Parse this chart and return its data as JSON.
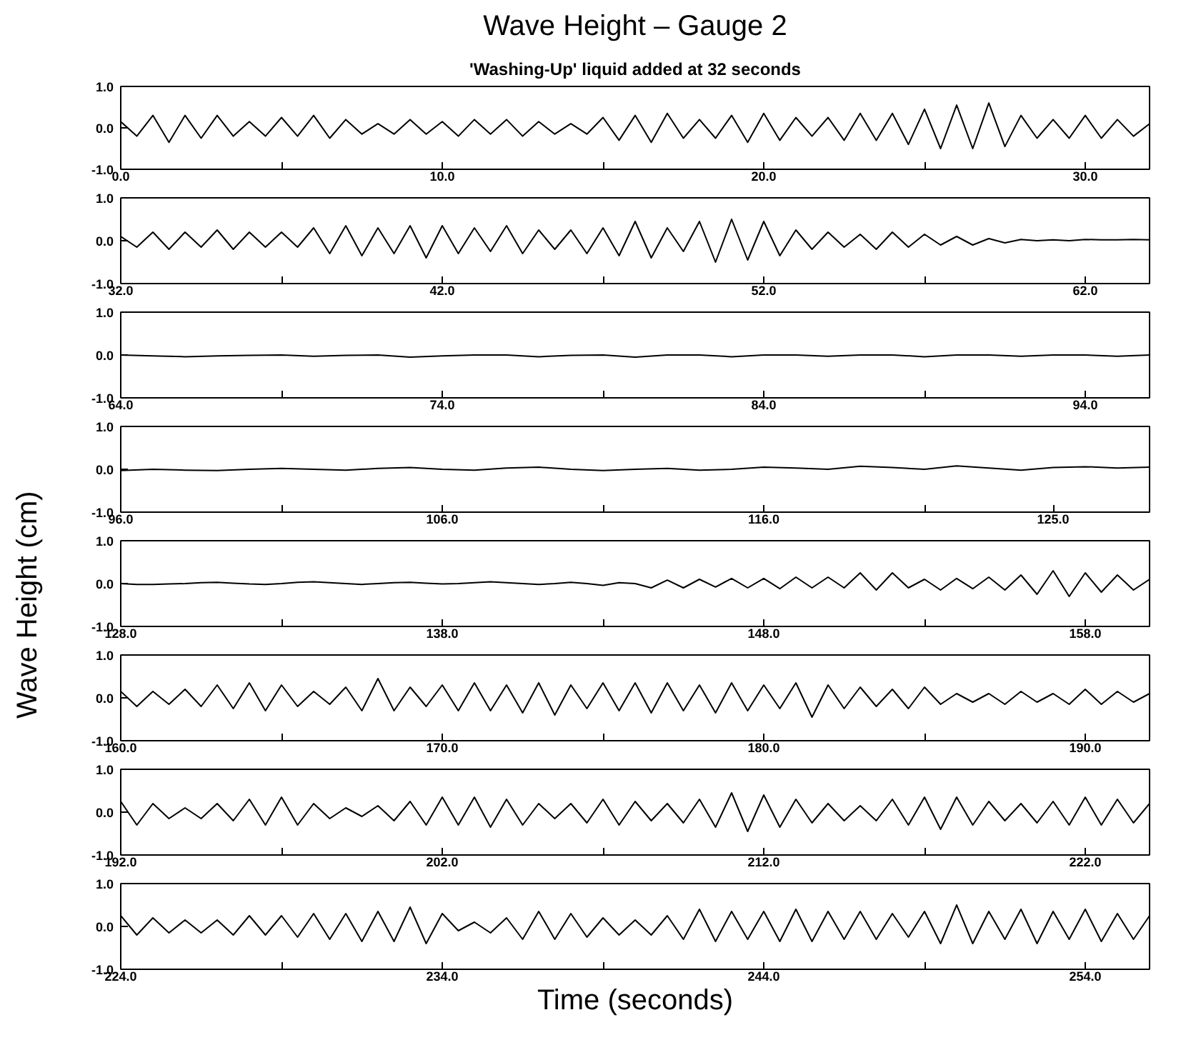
{
  "chart_data": [
    {
      "type": "line",
      "title": "Wave Height – Gauge 2",
      "subtitle": "'Washing-Up' liquid added at 32 seconds",
      "xlim": [
        0,
        32
      ],
      "xticks": [
        {
          "value": 0,
          "label": "0.0"
        },
        {
          "value": 5,
          "label": null
        },
        {
          "value": 10,
          "label": "10.0"
        },
        {
          "value": 15,
          "label": null
        },
        {
          "value": 20,
          "label": "20.0"
        },
        {
          "value": 25,
          "label": null
        },
        {
          "value": 30,
          "label": "30.0"
        }
      ],
      "ylim": [
        -1,
        1
      ],
      "yticks": [
        {
          "value": -1,
          "label": "-1.0"
        },
        {
          "value": 0,
          "label": "0.0"
        },
        {
          "value": 1,
          "label": "1.0"
        }
      ],
      "series": [
        {
          "color": "#000000",
          "x": [
            0,
            0.5,
            1,
            1.5,
            2,
            2.5,
            3,
            3.5,
            4,
            4.5,
            5,
            5.5,
            6,
            6.5,
            7,
            7.5,
            8,
            8.5,
            9,
            9.5,
            10,
            10.5,
            11,
            11.5,
            12,
            12.5,
            13,
            13.5,
            14,
            14.5,
            15,
            15.5,
            16,
            16.5,
            17,
            17.5,
            18,
            18.5,
            19,
            19.5,
            20,
            20.5,
            21,
            21.5,
            22,
            22.5,
            23,
            23.5,
            24,
            24.5,
            25,
            25.5,
            26,
            26.5,
            27,
            27.5,
            28,
            28.5,
            29,
            29.5,
            30,
            30.5,
            31,
            31.5,
            32
          ],
          "values": [
            0.15,
            -0.2,
            0.3,
            -0.35,
            0.3,
            -0.25,
            0.3,
            -0.2,
            0.15,
            -0.2,
            0.25,
            -0.2,
            0.3,
            -0.25,
            0.2,
            -0.15,
            0.1,
            -0.15,
            0.2,
            -0.15,
            0.15,
            -0.2,
            0.2,
            -0.15,
            0.2,
            -0.2,
            0.15,
            -0.15,
            0.1,
            -0.15,
            0.25,
            -0.3,
            0.3,
            -0.35,
            0.35,
            -0.25,
            0.2,
            -0.25,
            0.3,
            -0.35,
            0.35,
            -0.3,
            0.25,
            -0.2,
            0.25,
            -0.3,
            0.35,
            -0.3,
            0.35,
            -0.4,
            0.45,
            -0.5,
            0.55,
            -0.5,
            0.6,
            -0.45,
            0.3,
            -0.25,
            0.2,
            -0.25,
            0.3,
            -0.25,
            0.2,
            -0.2,
            0.1
          ]
        }
      ]
    },
    {
      "type": "line",
      "xlim": [
        32,
        64
      ],
      "xticks": [
        {
          "value": 32,
          "label": "32.0"
        },
        {
          "value": 37,
          "label": null
        },
        {
          "value": 42,
          "label": "42.0"
        },
        {
          "value": 47,
          "label": null
        },
        {
          "value": 52,
          "label": "52.0"
        },
        {
          "value": 57,
          "label": null
        },
        {
          "value": 62,
          "label": "62.0"
        }
      ],
      "ylim": [
        -1,
        1
      ],
      "yticks": [
        {
          "value": -1,
          "label": "-1.0"
        },
        {
          "value": 0,
          "label": "0.0"
        },
        {
          "value": 1,
          "label": "1.0"
        }
      ],
      "series": [
        {
          "color": "#000000",
          "x": [
            32,
            32.5,
            33,
            33.5,
            34,
            34.5,
            35,
            35.5,
            36,
            36.5,
            37,
            37.5,
            38,
            38.5,
            39,
            39.5,
            40,
            40.5,
            41,
            41.5,
            42,
            42.5,
            43,
            43.5,
            44,
            44.5,
            45,
            45.5,
            46,
            46.5,
            47,
            47.5,
            48,
            48.5,
            49,
            49.5,
            50,
            50.5,
            51,
            51.5,
            52,
            52.5,
            53,
            53.5,
            54,
            54.5,
            55,
            55.5,
            56,
            56.5,
            57,
            57.5,
            58,
            58.5,
            59,
            59.5,
            60,
            60.5,
            61,
            61.5,
            62,
            62.5,
            63,
            63.5,
            64
          ],
          "values": [
            0.1,
            -0.15,
            0.2,
            -0.2,
            0.2,
            -0.15,
            0.25,
            -0.2,
            0.2,
            -0.15,
            0.2,
            -0.15,
            0.3,
            -0.3,
            0.35,
            -0.35,
            0.3,
            -0.3,
            0.35,
            -0.4,
            0.35,
            -0.3,
            0.3,
            -0.25,
            0.35,
            -0.3,
            0.25,
            -0.2,
            0.25,
            -0.3,
            0.3,
            -0.35,
            0.45,
            -0.4,
            0.3,
            -0.25,
            0.45,
            -0.5,
            0.5,
            -0.45,
            0.45,
            -0.35,
            0.25,
            -0.2,
            0.2,
            -0.15,
            0.15,
            -0.2,
            0.2,
            -0.15,
            0.15,
            -0.1,
            0.1,
            -0.1,
            0.05,
            -0.05,
            0.03,
            0.0,
            0.02,
            0.0,
            0.03,
            0.02,
            0.02,
            0.03,
            0.02
          ]
        }
      ]
    },
    {
      "type": "line",
      "xlim": [
        64,
        96
      ],
      "xticks": [
        {
          "value": 64,
          "label": "64.0"
        },
        {
          "value": 69,
          "label": null
        },
        {
          "value": 74,
          "label": "74.0"
        },
        {
          "value": 79,
          "label": null
        },
        {
          "value": 84,
          "label": "84.0"
        },
        {
          "value": 89,
          "label": null
        },
        {
          "value": 94,
          "label": "94.0"
        }
      ],
      "ylim": [
        -1,
        1
      ],
      "yticks": [
        {
          "value": -1,
          "label": "-1.0"
        },
        {
          "value": 0,
          "label": "0.0"
        },
        {
          "value": 1,
          "label": "1.0"
        }
      ],
      "series": [
        {
          "color": "#000000",
          "x": [
            64,
            65,
            66,
            67,
            68,
            69,
            70,
            71,
            72,
            73,
            74,
            75,
            76,
            77,
            78,
            79,
            80,
            81,
            82,
            83,
            84,
            85,
            86,
            87,
            88,
            89,
            90,
            91,
            92,
            93,
            94,
            95,
            96
          ],
          "values": [
            0.0,
            -0.02,
            -0.04,
            -0.02,
            -0.01,
            0.0,
            -0.03,
            -0.01,
            0.0,
            -0.05,
            -0.02,
            0.0,
            0.0,
            -0.04,
            -0.01,
            0.0,
            -0.05,
            0.0,
            0.0,
            -0.04,
            0.0,
            0.0,
            -0.03,
            0.0,
            0.0,
            -0.04,
            0.0,
            0.0,
            -0.03,
            0.0,
            0.0,
            -0.03,
            0.0
          ]
        }
      ]
    },
    {
      "type": "line",
      "xlim": [
        96,
        128
      ],
      "xticks": [
        {
          "value": 96,
          "label": "96.0"
        },
        {
          "value": 101,
          "label": null
        },
        {
          "value": 106,
          "label": "106.0"
        },
        {
          "value": 111,
          "label": null
        },
        {
          "value": 116,
          "label": "116.0"
        },
        {
          "value": 121,
          "label": null
        },
        {
          "value": 125,
          "label": "125.0"
        }
      ],
      "ylim": [
        -1,
        1
      ],
      "yticks": [
        {
          "value": -1,
          "label": "-1.0"
        },
        {
          "value": 0,
          "label": "0.0"
        },
        {
          "value": 1,
          "label": "1.0"
        }
      ],
      "series": [
        {
          "color": "#000000",
          "x": [
            96,
            97,
            98,
            99,
            100,
            101,
            102,
            103,
            104,
            105,
            106,
            107,
            108,
            109,
            110,
            111,
            112,
            113,
            114,
            115,
            116,
            117,
            118,
            119,
            120,
            121,
            122,
            123,
            124,
            125,
            126,
            127,
            128
          ],
          "values": [
            -0.03,
            0.0,
            -0.02,
            -0.03,
            0.0,
            0.02,
            0.0,
            -0.02,
            0.02,
            0.04,
            0.0,
            -0.02,
            0.03,
            0.05,
            0.0,
            -0.03,
            0.0,
            0.02,
            -0.02,
            0.0,
            0.05,
            0.03,
            0.0,
            0.07,
            0.04,
            0.0,
            0.08,
            0.03,
            -0.02,
            0.04,
            0.06,
            0.03,
            0.05
          ]
        }
      ]
    },
    {
      "type": "line",
      "ylabel": "Wave Height (cm)",
      "xlim": [
        128,
        160
      ],
      "xticks": [
        {
          "value": 128,
          "label": "128.0"
        },
        {
          "value": 133,
          "label": null
        },
        {
          "value": 138,
          "label": "138.0"
        },
        {
          "value": 143,
          "label": null
        },
        {
          "value": 148,
          "label": "148.0"
        },
        {
          "value": 153,
          "label": null
        },
        {
          "value": 158,
          "label": "158.0"
        }
      ],
      "ylim": [
        -1,
        1
      ],
      "yticks": [
        {
          "value": -1,
          "label": "-1.0"
        },
        {
          "value": 0,
          "label": "0.0"
        },
        {
          "value": 1,
          "label": "1.0"
        }
      ],
      "series": [
        {
          "color": "#000000",
          "x": [
            128,
            128.5,
            129,
            129.5,
            130,
            130.5,
            131,
            131.5,
            132,
            132.5,
            133,
            133.5,
            134,
            134.5,
            135,
            135.5,
            136,
            136.5,
            137,
            137.5,
            138,
            138.5,
            139,
            139.5,
            140,
            140.5,
            141,
            141.5,
            142,
            142.5,
            143,
            143.5,
            144,
            144.5,
            145,
            145.5,
            146,
            146.5,
            147,
            147.5,
            148,
            148.5,
            149,
            149.5,
            150,
            150.5,
            151,
            151.5,
            152,
            152.5,
            153,
            153.5,
            154,
            154.5,
            155,
            155.5,
            156,
            156.5,
            157,
            157.5,
            158,
            158.5,
            159,
            159.5,
            160
          ],
          "values": [
            0.0,
            -0.02,
            -0.02,
            -0.01,
            0.0,
            0.02,
            0.03,
            0.01,
            -0.01,
            -0.02,
            0.0,
            0.03,
            0.04,
            0.02,
            0.0,
            -0.02,
            0.0,
            0.02,
            0.03,
            0.01,
            -0.01,
            0.0,
            0.02,
            0.04,
            0.02,
            0.0,
            -0.02,
            0.0,
            0.03,
            0.0,
            -0.04,
            0.02,
            0.0,
            -0.1,
            0.08,
            -0.1,
            0.1,
            -0.08,
            0.12,
            -0.1,
            0.12,
            -0.12,
            0.15,
            -0.1,
            0.15,
            -0.1,
            0.25,
            -0.15,
            0.25,
            -0.1,
            0.1,
            -0.15,
            0.12,
            -0.12,
            0.15,
            -0.15,
            0.2,
            -0.25,
            0.3,
            -0.3,
            0.25,
            -0.2,
            0.2,
            -0.15,
            0.1
          ]
        }
      ]
    },
    {
      "type": "line",
      "xlim": [
        160,
        192
      ],
      "xticks": [
        {
          "value": 160,
          "label": "160.0"
        },
        {
          "value": 165,
          "label": null
        },
        {
          "value": 170,
          "label": "170.0"
        },
        {
          "value": 175,
          "label": null
        },
        {
          "value": 180,
          "label": "180.0"
        },
        {
          "value": 185,
          "label": null
        },
        {
          "value": 190,
          "label": "190.0"
        }
      ],
      "ylim": [
        -1,
        1
      ],
      "yticks": [
        {
          "value": -1,
          "label": "-1.0"
        },
        {
          "value": 0,
          "label": "0.0"
        },
        {
          "value": 1,
          "label": "1.0"
        }
      ],
      "series": [
        {
          "color": "#000000",
          "x": [
            160,
            160.5,
            161,
            161.5,
            162,
            162.5,
            163,
            163.5,
            164,
            164.5,
            165,
            165.5,
            166,
            166.5,
            167,
            167.5,
            168,
            168.5,
            169,
            169.5,
            170,
            170.5,
            171,
            171.5,
            172,
            172.5,
            173,
            173.5,
            174,
            174.5,
            175,
            175.5,
            176,
            176.5,
            177,
            177.5,
            178,
            178.5,
            179,
            179.5,
            180,
            180.5,
            181,
            181.5,
            182,
            182.5,
            183,
            183.5,
            184,
            184.5,
            185,
            185.5,
            186,
            186.5,
            187,
            187.5,
            188,
            188.5,
            189,
            189.5,
            190,
            190.5,
            191,
            191.5,
            192
          ],
          "values": [
            0.15,
            -0.2,
            0.15,
            -0.15,
            0.2,
            -0.2,
            0.3,
            -0.25,
            0.35,
            -0.3,
            0.3,
            -0.2,
            0.15,
            -0.15,
            0.25,
            -0.3,
            0.45,
            -0.3,
            0.25,
            -0.2,
            0.3,
            -0.3,
            0.35,
            -0.3,
            0.3,
            -0.35,
            0.35,
            -0.4,
            0.3,
            -0.25,
            0.35,
            -0.3,
            0.35,
            -0.35,
            0.35,
            -0.3,
            0.3,
            -0.35,
            0.35,
            -0.3,
            0.3,
            -0.25,
            0.35,
            -0.45,
            0.3,
            -0.25,
            0.25,
            -0.2,
            0.2,
            -0.25,
            0.25,
            -0.15,
            0.1,
            -0.1,
            0.1,
            -0.15,
            0.15,
            -0.1,
            0.1,
            -0.15,
            0.2,
            -0.15,
            0.15,
            -0.1,
            0.1
          ]
        }
      ]
    },
    {
      "type": "line",
      "xlim": [
        192,
        224
      ],
      "xticks": [
        {
          "value": 192,
          "label": "192.0"
        },
        {
          "value": 197,
          "label": null
        },
        {
          "value": 202,
          "label": "202.0"
        },
        {
          "value": 207,
          "label": null
        },
        {
          "value": 212,
          "label": "212.0"
        },
        {
          "value": 217,
          "label": null
        },
        {
          "value": 222,
          "label": "222.0"
        }
      ],
      "ylim": [
        -1,
        1
      ],
      "yticks": [
        {
          "value": -1,
          "label": "-1.0"
        },
        {
          "value": 0,
          "label": "0.0"
        },
        {
          "value": 1,
          "label": "1.0"
        }
      ],
      "series": [
        {
          "color": "#000000",
          "x": [
            192,
            192.5,
            193,
            193.5,
            194,
            194.5,
            195,
            195.5,
            196,
            196.5,
            197,
            197.5,
            198,
            198.5,
            199,
            199.5,
            200,
            200.5,
            201,
            201.5,
            202,
            202.5,
            203,
            203.5,
            204,
            204.5,
            205,
            205.5,
            206,
            206.5,
            207,
            207.5,
            208,
            208.5,
            209,
            209.5,
            210,
            210.5,
            211,
            211.5,
            212,
            212.5,
            213,
            213.5,
            214,
            214.5,
            215,
            215.5,
            216,
            216.5,
            217,
            217.5,
            218,
            218.5,
            219,
            219.5,
            220,
            220.5,
            221,
            221.5,
            222,
            222.5,
            223,
            223.5,
            224
          ],
          "values": [
            0.25,
            -0.3,
            0.2,
            -0.15,
            0.1,
            -0.15,
            0.2,
            -0.2,
            0.3,
            -0.3,
            0.35,
            -0.3,
            0.2,
            -0.15,
            0.1,
            -0.1,
            0.15,
            -0.2,
            0.25,
            -0.3,
            0.35,
            -0.3,
            0.35,
            -0.35,
            0.3,
            -0.3,
            0.2,
            -0.15,
            0.2,
            -0.25,
            0.3,
            -0.3,
            0.25,
            -0.2,
            0.2,
            -0.25,
            0.3,
            -0.35,
            0.45,
            -0.45,
            0.4,
            -0.35,
            0.3,
            -0.25,
            0.2,
            -0.2,
            0.15,
            -0.2,
            0.3,
            -0.3,
            0.35,
            -0.4,
            0.35,
            -0.3,
            0.25,
            -0.2,
            0.2,
            -0.25,
            0.25,
            -0.3,
            0.35,
            -0.3,
            0.3,
            -0.25,
            0.2
          ]
        }
      ]
    },
    {
      "type": "line",
      "xlabel": "Time (seconds)",
      "xlim": [
        224,
        256
      ],
      "xticks": [
        {
          "value": 224,
          "label": "224.0"
        },
        {
          "value": 229,
          "label": null
        },
        {
          "value": 234,
          "label": "234.0"
        },
        {
          "value": 239,
          "label": null
        },
        {
          "value": 244,
          "label": "244.0"
        },
        {
          "value": 249,
          "label": null
        },
        {
          "value": 254,
          "label": "254.0"
        }
      ],
      "ylim": [
        -1,
        1
      ],
      "yticks": [
        {
          "value": -1,
          "label": "-1.0"
        },
        {
          "value": 0,
          "label": "0.0"
        },
        {
          "value": 1,
          "label": "1.0"
        }
      ],
      "series": [
        {
          "color": "#000000",
          "x": [
            224,
            224.5,
            225,
            225.5,
            226,
            226.5,
            227,
            227.5,
            228,
            228.5,
            229,
            229.5,
            230,
            230.5,
            231,
            231.5,
            232,
            232.5,
            233,
            233.5,
            234,
            234.5,
            235,
            235.5,
            236,
            236.5,
            237,
            237.5,
            238,
            238.5,
            239,
            239.5,
            240,
            240.5,
            241,
            241.5,
            242,
            242.5,
            243,
            243.5,
            244,
            244.5,
            245,
            245.5,
            246,
            246.5,
            247,
            247.5,
            248,
            248.5,
            249,
            249.5,
            250,
            250.5,
            251,
            251.5,
            252,
            252.5,
            253,
            253.5,
            254,
            254.5,
            255,
            255.5,
            256
          ],
          "values": [
            0.25,
            -0.2,
            0.2,
            -0.15,
            0.15,
            -0.15,
            0.15,
            -0.2,
            0.25,
            -0.2,
            0.25,
            -0.25,
            0.3,
            -0.3,
            0.3,
            -0.35,
            0.35,
            -0.35,
            0.45,
            -0.4,
            0.3,
            -0.1,
            0.1,
            -0.15,
            0.2,
            -0.3,
            0.35,
            -0.3,
            0.3,
            -0.25,
            0.2,
            -0.2,
            0.15,
            -0.2,
            0.25,
            -0.3,
            0.4,
            -0.35,
            0.35,
            -0.3,
            0.35,
            -0.35,
            0.4,
            -0.35,
            0.35,
            -0.3,
            0.35,
            -0.3,
            0.3,
            -0.25,
            0.35,
            -0.4,
            0.5,
            -0.4,
            0.35,
            -0.3,
            0.4,
            -0.4,
            0.35,
            -0.3,
            0.4,
            -0.35,
            0.3,
            -0.3,
            0.25
          ]
        }
      ]
    }
  ]
}
